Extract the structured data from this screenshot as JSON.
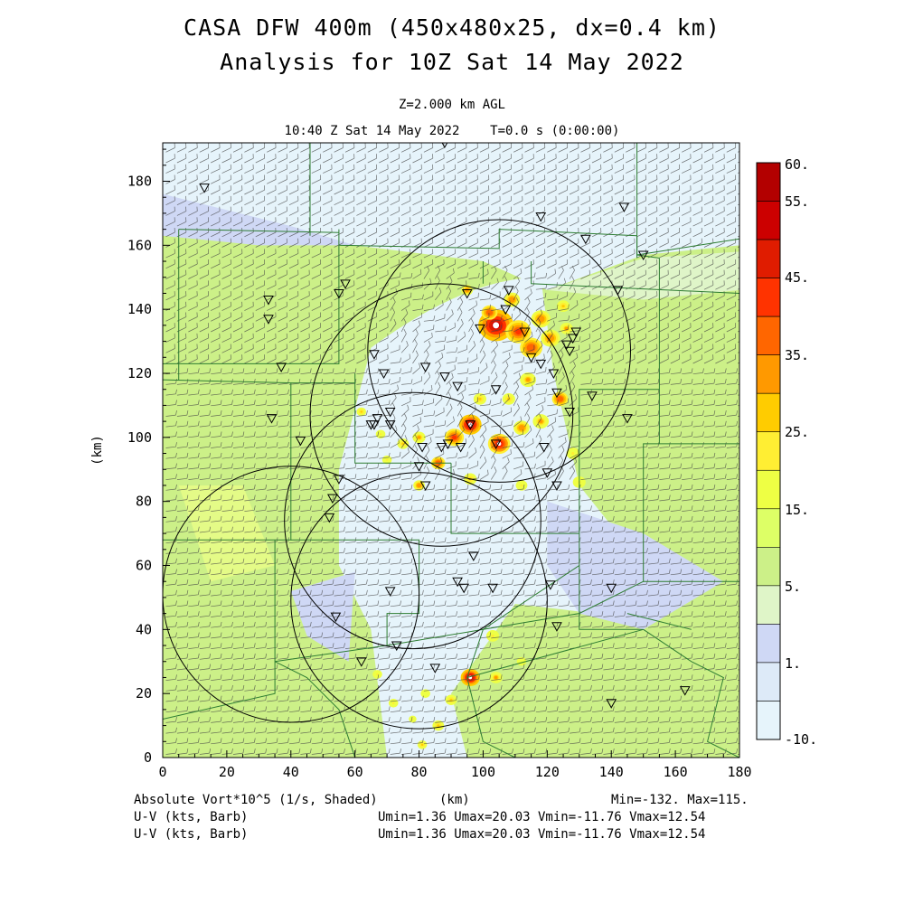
{
  "title_line1": "CASA DFW 400m (450x480x25, dx=0.4 km)",
  "title_line2": "Analysis for 10Z Sat 14 May 2022",
  "level": "Z=2.000 km AGL",
  "valid_time": "10:40 Z Sat 14 May 2022",
  "sim_time": "T=0.0 s (0:00:00)",
  "chart_data": {
    "type": "heatmap",
    "xlabel": "(km)",
    "ylabel": "(km)",
    "xlim": [
      0,
      180
    ],
    "ylim": [
      0,
      192
    ],
    "x_ticks": [
      "0",
      "20",
      "40",
      "60",
      "80",
      "100",
      "120",
      "140",
      "160",
      "180"
    ],
    "y_ticks": [
      "0",
      "20",
      "40",
      "60",
      "80",
      "100",
      "120",
      "140",
      "160",
      "180"
    ],
    "colorbar_labels": [
      "60.",
      "55.",
      "45.",
      "35.",
      "25.",
      "15.",
      "5.",
      "1.",
      "-10."
    ],
    "colorbar_colors": [
      "#b30000",
      "#cc0000",
      "#e01c00",
      "#ff3300",
      "#ff6600",
      "#ff9900",
      "#ffcc00",
      "#ffee33",
      "#eeff44",
      "#ddff66",
      "#ccf088",
      "#dff5c8",
      "#cfd8f5",
      "#ddeaf8",
      "#e6f4fb"
    ],
    "field": "Absolute Vort*10^5 (1/s, Shaded)",
    "min_label": "Min=-132.",
    "max_label": "Max=115.",
    "wind_label_1": "U-V (kts, Barb)",
    "wind_stats_1": "Umin=1.36 Umax=20.03 Vmin=-11.76 Vmax=12.54",
    "wind_label_2": "U-V (kts, Barb)",
    "wind_stats_2": "Umin=1.36 Umax=20.03 Vmin=-11.76 Vmax=12.54",
    "x_axis_label": "(km)",
    "range_rings": [
      {
        "cx": 105,
        "cy": 127,
        "r": 41
      },
      {
        "cx": 87,
        "cy": 107,
        "r": 41
      },
      {
        "cx": 78,
        "cy": 74,
        "r": 40
      },
      {
        "cx": 80,
        "cy": 49,
        "r": 40
      },
      {
        "cx": 40,
        "cy": 51,
        "r": 40
      }
    ],
    "stations": [
      [
        13,
        178
      ],
      [
        88,
        192
      ],
      [
        118,
        169
      ],
      [
        144,
        172
      ],
      [
        132,
        162
      ],
      [
        150,
        157
      ],
      [
        142,
        146
      ],
      [
        33,
        143
      ],
      [
        33,
        137
      ],
      [
        57,
        148
      ],
      [
        55,
        145
      ],
      [
        37,
        122
      ],
      [
        66,
        126
      ],
      [
        69,
        120
      ],
      [
        71,
        108
      ],
      [
        82,
        122
      ],
      [
        88,
        119
      ],
      [
        92,
        116
      ],
      [
        104,
        115
      ],
      [
        107,
        140
      ],
      [
        108,
        146
      ],
      [
        95,
        145
      ],
      [
        99,
        134
      ],
      [
        113,
        133
      ],
      [
        115,
        125
      ],
      [
        118,
        123
      ],
      [
        122,
        120
      ],
      [
        127,
        127
      ],
      [
        126,
        129
      ],
      [
        128,
        131
      ],
      [
        129,
        133
      ],
      [
        123,
        114
      ],
      [
        127,
        108
      ],
      [
        134,
        113
      ],
      [
        145,
        106
      ],
      [
        34,
        106
      ],
      [
        43,
        99
      ],
      [
        65,
        104
      ],
      [
        66,
        104
      ],
      [
        67,
        106
      ],
      [
        71,
        104
      ],
      [
        81,
        97
      ],
      [
        87,
        97
      ],
      [
        89,
        98
      ],
      [
        93,
        97
      ],
      [
        96,
        104
      ],
      [
        104,
        98
      ],
      [
        119,
        97
      ],
      [
        120,
        89
      ],
      [
        123,
        85
      ],
      [
        80,
        91
      ],
      [
        82,
        85
      ],
      [
        55,
        87
      ],
      [
        53,
        81
      ],
      [
        52,
        75
      ],
      [
        97,
        63
      ],
      [
        92,
        55
      ],
      [
        94,
        53
      ],
      [
        103,
        53
      ],
      [
        121,
        54
      ],
      [
        140,
        53
      ],
      [
        71,
        52
      ],
      [
        54,
        44
      ],
      [
        73,
        35
      ],
      [
        123,
        41
      ],
      [
        62,
        30
      ],
      [
        85,
        28
      ],
      [
        140,
        17
      ],
      [
        163,
        21
      ]
    ],
    "hotspots": [
      {
        "x": 104,
        "y": 135,
        "r": 5.5,
        "v": 60
      },
      {
        "x": 111,
        "y": 133,
        "r": 4,
        "v": 50
      },
      {
        "x": 115,
        "y": 128,
        "r": 3.5,
        "v": 45
      },
      {
        "x": 118,
        "y": 137,
        "r": 3,
        "v": 40
      },
      {
        "x": 109,
        "y": 143,
        "r": 2.5,
        "v": 40
      },
      {
        "x": 102,
        "y": 139,
        "r": 2.5,
        "v": 45
      },
      {
        "x": 95,
        "y": 146,
        "r": 1.8,
        "v": 40
      },
      {
        "x": 121,
        "y": 131,
        "r": 3,
        "v": 40
      },
      {
        "x": 126,
        "y": 134,
        "r": 2,
        "v": 35
      },
      {
        "x": 125,
        "y": 141,
        "r": 2,
        "v": 30
      },
      {
        "x": 99,
        "y": 112,
        "r": 2,
        "v": 30
      },
      {
        "x": 96,
        "y": 104,
        "r": 3.5,
        "v": 60
      },
      {
        "x": 91,
        "y": 100,
        "r": 3,
        "v": 50
      },
      {
        "x": 105,
        "y": 98,
        "r": 3.5,
        "v": 55
      },
      {
        "x": 112,
        "y": 103,
        "r": 2.5,
        "v": 40
      },
      {
        "x": 118,
        "y": 105,
        "r": 2.5,
        "v": 35
      },
      {
        "x": 124,
        "y": 112,
        "r": 2.5,
        "v": 45
      },
      {
        "x": 114,
        "y": 118,
        "r": 2.5,
        "v": 35
      },
      {
        "x": 86,
        "y": 92,
        "r": 2.2,
        "v": 45
      },
      {
        "x": 80,
        "y": 85,
        "r": 1.8,
        "v": 40
      },
      {
        "x": 75,
        "y": 98,
        "r": 1.8,
        "v": 30
      },
      {
        "x": 68,
        "y": 101,
        "r": 1.5,
        "v": 25
      },
      {
        "x": 70,
        "y": 93,
        "r": 1.5,
        "v": 25
      },
      {
        "x": 80,
        "y": 100,
        "r": 2,
        "v": 35
      },
      {
        "x": 62,
        "y": 108,
        "r": 1.5,
        "v": 30
      },
      {
        "x": 108,
        "y": 112,
        "r": 2,
        "v": 30
      },
      {
        "x": 128,
        "y": 95,
        "r": 2,
        "v": 25
      },
      {
        "x": 130,
        "y": 86,
        "r": 2,
        "v": 25
      },
      {
        "x": 112,
        "y": 85,
        "r": 1.8,
        "v": 25
      },
      {
        "x": 96,
        "y": 87,
        "r": 2,
        "v": 30
      },
      {
        "x": 96,
        "y": 25,
        "r": 3,
        "v": 60
      },
      {
        "x": 104,
        "y": 25,
        "r": 2,
        "v": 35
      },
      {
        "x": 90,
        "y": 18,
        "r": 1.8,
        "v": 30
      },
      {
        "x": 86,
        "y": 10,
        "r": 1.8,
        "v": 30
      },
      {
        "x": 81,
        "y": 4,
        "r": 1.5,
        "v": 30
      },
      {
        "x": 72,
        "y": 17,
        "r": 1.5,
        "v": 25
      },
      {
        "x": 67,
        "y": 26,
        "r": 1.5,
        "v": 25
      },
      {
        "x": 103,
        "y": 38,
        "r": 2,
        "v": 25
      },
      {
        "x": 82,
        "y": 20,
        "r": 1.5,
        "v": 20
      },
      {
        "x": 78,
        "y": 12,
        "r": 1.2,
        "v": 25
      },
      {
        "x": 112,
        "y": 30,
        "r": 1.5,
        "v": 20
      }
    ]
  }
}
